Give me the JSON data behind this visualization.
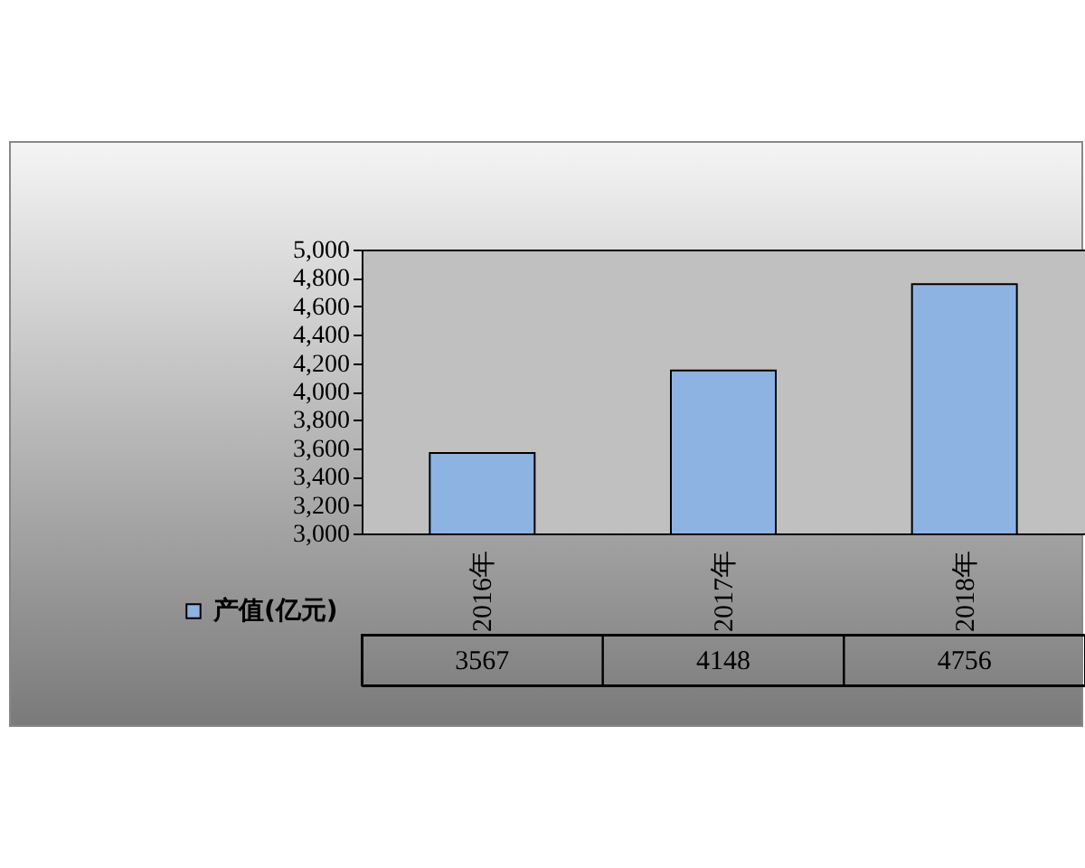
{
  "chart_data": {
    "type": "bar",
    "categories": [
      "2016年",
      "2017年",
      "2018年"
    ],
    "series": [
      {
        "name": "产值(亿元)",
        "color": "#8db3e2",
        "values": [
          3567,
          4148,
          4756
        ]
      }
    ],
    "ylim": [
      3000,
      5000
    ],
    "yticks": [
      {
        "value": 3000,
        "label": "3,000"
      },
      {
        "value": 3200,
        "label": "3,200"
      },
      {
        "value": 3400,
        "label": "3,400"
      },
      {
        "value": 3600,
        "label": "3,600"
      },
      {
        "value": 3800,
        "label": "3,800"
      },
      {
        "value": 4000,
        "label": "4,000"
      },
      {
        "value": 4200,
        "label": "4,200"
      },
      {
        "value": 4400,
        "label": "4,400"
      },
      {
        "value": 4600,
        "label": "4,600"
      },
      {
        "value": 4800,
        "label": "4,800"
      },
      {
        "value": 5000,
        "label": "5,000"
      }
    ],
    "data_labels": true,
    "legend": "bottom left"
  }
}
